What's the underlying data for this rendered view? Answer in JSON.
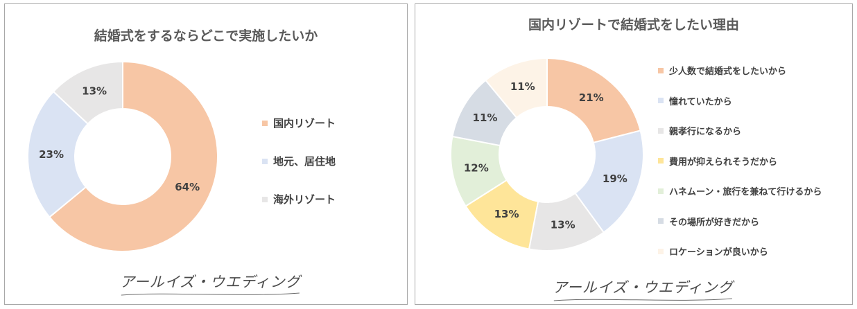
{
  "chart_data": [
    {
      "type": "pie",
      "title": "結婚式をするならどこで実施したいか",
      "categories": [
        "国内リゾート",
        "地元、居住地",
        "海外リゾート"
      ],
      "values": [
        64,
        23,
        13
      ],
      "data_labels": [
        "64%",
        "23%",
        "13%"
      ],
      "colors": [
        "#f7c6a5",
        "#dae3f3",
        "#e7e6e6"
      ],
      "legend_position": "right"
    },
    {
      "type": "pie",
      "title": "国内リゾートで結婚式をしたい理由",
      "categories": [
        "少人数で結婚式をしたいから",
        "憧れていたから",
        "親孝行になるから",
        "費用が抑えられそうだから",
        "ハネムーン・旅行を兼ねて行けるから",
        "その場所が好きだから",
        "ロケーションが良いから"
      ],
      "values": [
        21,
        19,
        13,
        13,
        12,
        11,
        11
      ],
      "data_labels": [
        "21%",
        "19%",
        "13%",
        "13%",
        "12%",
        "11%",
        "11%"
      ],
      "colors": [
        "#f7c6a5",
        "#dae3f3",
        "#e7e6e6",
        "#fee599",
        "#e2efd9",
        "#d6dce4",
        "#fdf3e7"
      ],
      "legend_position": "right"
    }
  ],
  "brand": {
    "logo_text": "アールイズ・ウエディング"
  }
}
